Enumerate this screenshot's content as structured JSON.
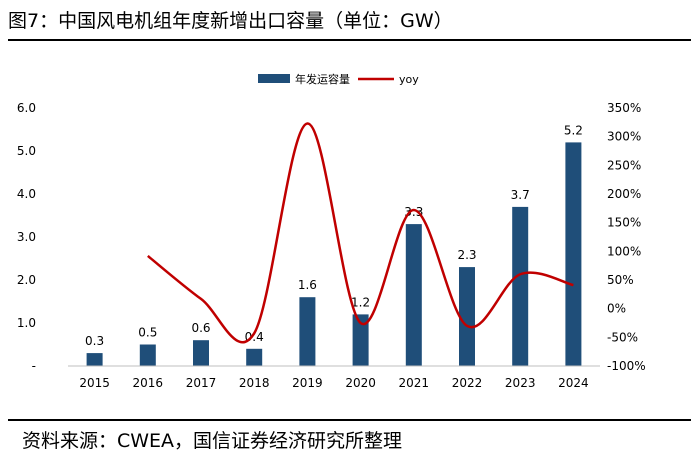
{
  "header": {
    "title": "图7：中国风电机组年度新增出口容量（单位：GW）"
  },
  "footer": {
    "source": "资料来源：CWEA，国信证券经济研究所整理"
  },
  "chart_data": {
    "type": "bar",
    "title": "图7：中国风电机组年度新增出口容量（单位：GW）",
    "categories": [
      "2015",
      "2016",
      "2017",
      "2018",
      "2019",
      "2020",
      "2021",
      "2022",
      "2023",
      "2024"
    ],
    "series": [
      {
        "name": "年发运容量",
        "kind": "bar",
        "axis": "left",
        "color": "#1f4e79",
        "values": [
          0.3,
          0.5,
          0.6,
          0.4,
          1.6,
          1.2,
          3.3,
          2.3,
          3.7,
          5.2
        ],
        "labels": [
          "0.3",
          "0.5",
          "0.6",
          "0.4",
          "1.6",
          "1.2",
          "3.3",
          "2.3",
          "3.7",
          "5.2"
        ]
      },
      {
        "name": "yoy",
        "kind": "line",
        "axis": "right",
        "color": "#c00000",
        "values": [
          null,
          92,
          17,
          -43,
          323,
          -25,
          172,
          -30,
          60,
          41
        ]
      }
    ],
    "y_left": {
      "min": 0,
      "max": 6,
      "ticks": [
        "-",
        "1.0",
        "2.0",
        "3.0",
        "4.0",
        "5.0",
        "6.0"
      ]
    },
    "y_right": {
      "min": -100,
      "max": 350,
      "ticks": [
        "-100%",
        "-50%",
        "0%",
        "50%",
        "100%",
        "150%",
        "200%",
        "250%",
        "300%",
        "350%"
      ]
    },
    "legend": {
      "position": "top-center"
    }
  }
}
